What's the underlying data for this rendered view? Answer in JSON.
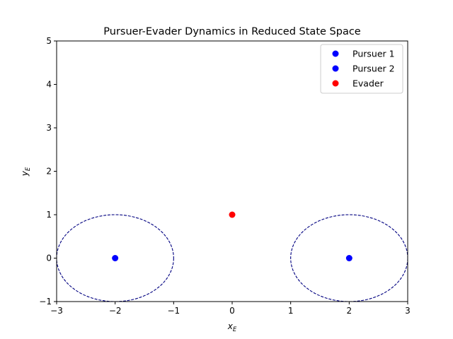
{
  "chart_data": {
    "type": "scatter",
    "title": "Pursuer-Evader Dynamics in Reduced State Space",
    "xlabel": {
      "base": "x",
      "sub": "E"
    },
    "ylabel": {
      "base": "y",
      "sub": "E"
    },
    "xlim": [
      -3,
      3
    ],
    "ylim": [
      -1,
      5
    ],
    "xticks": [
      -3,
      -2,
      -1,
      0,
      1,
      2,
      3
    ],
    "yticks": [
      -1,
      0,
      1,
      2,
      3,
      4,
      5
    ],
    "xtick_labels": [
      "−3",
      "−2",
      "−1",
      "0",
      "1",
      "2",
      "3"
    ],
    "ytick_labels": [
      "−1",
      "0",
      "1",
      "2",
      "3",
      "4",
      "5"
    ],
    "grid": false,
    "legend_position": "top-right",
    "series": [
      {
        "name": "Pursuer 1",
        "color": "#0000ff",
        "x": [
          2
        ],
        "y": [
          0
        ]
      },
      {
        "name": "Pursuer 2",
        "color": "#0000ff",
        "x": [
          -2
        ],
        "y": [
          0
        ]
      },
      {
        "name": "Evader",
        "color": "#ff0000",
        "x": [
          0
        ],
        "y": [
          1
        ]
      }
    ],
    "capture_circles": [
      {
        "cx": -2,
        "cy": 0,
        "r": 1,
        "color": "#000080",
        "style": "dashed"
      },
      {
        "cx": 2,
        "cy": 0,
        "r": 1,
        "color": "#000080",
        "style": "dashed"
      }
    ]
  }
}
